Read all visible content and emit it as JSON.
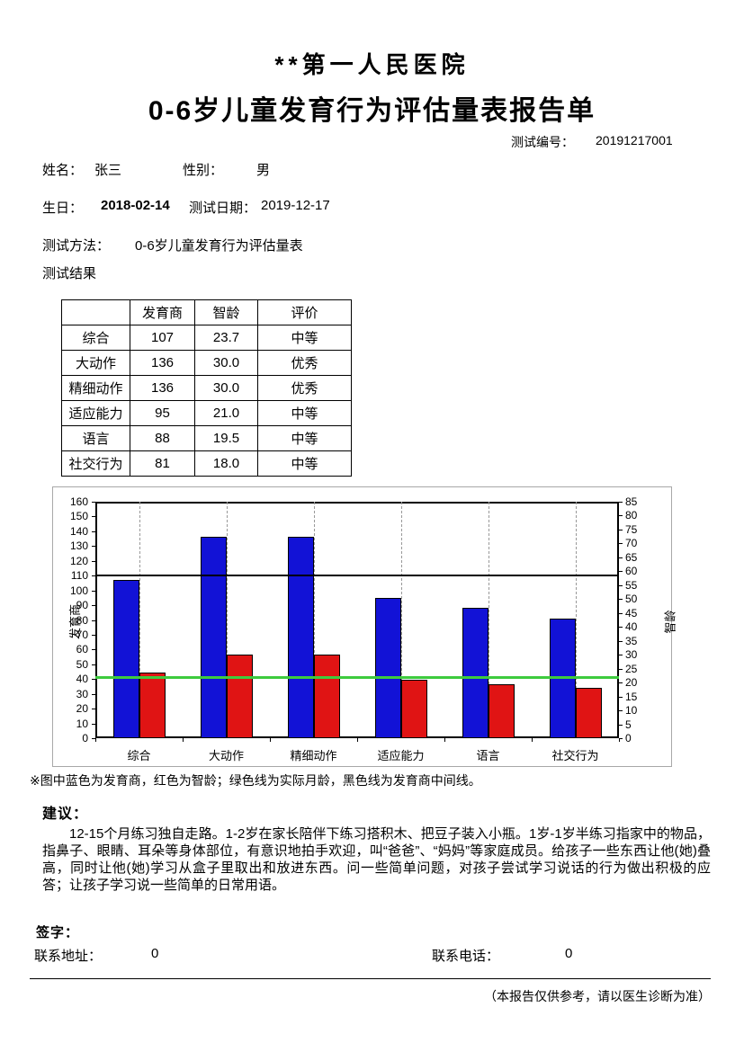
{
  "header": {
    "hospital": "**第一人民医院",
    "title": "0-6岁儿童发育行为评估量表报告单",
    "test_no_label": "测试编号：",
    "test_no": "20191217001"
  },
  "patient": {
    "name_label": "姓名：",
    "name": "张三",
    "gender_label": "性别：",
    "gender": "男",
    "birth_label": "生日：",
    "birth": "2018-02-14",
    "test_date_label": "测试日期：",
    "test_date": "2019-12-17",
    "method_label": "测试方法：",
    "method": "0-6岁儿童发育行为评估量表",
    "result_label": "测试结果"
  },
  "result_table": {
    "headers": [
      "",
      "发育商",
      "智龄",
      "评价"
    ],
    "rows": [
      [
        "综合",
        "107",
        "23.7",
        "中等"
      ],
      [
        "大动作",
        "136",
        "30.0",
        "优秀"
      ],
      [
        "精细动作",
        "136",
        "30.0",
        "优秀"
      ],
      [
        "适应能力",
        "95",
        "21.0",
        "中等"
      ],
      [
        "语言",
        "88",
        "19.5",
        "中等"
      ],
      [
        "社交行为",
        "81",
        "18.0",
        "中等"
      ]
    ]
  },
  "chart_data": {
    "type": "bar",
    "categories": [
      "综合",
      "大动作",
      "精细动作",
      "适应能力",
      "语言",
      "社交行为"
    ],
    "series": [
      {
        "name": "发育商",
        "axis": "left",
        "color": "#1212d6",
        "values": [
          107,
          136,
          136,
          95,
          88,
          81
        ]
      },
      {
        "name": "智龄",
        "axis": "right",
        "color": "#e01414",
        "values": [
          23.7,
          30.0,
          30.0,
          21.0,
          19.5,
          18.0
        ]
      }
    ],
    "left_axis": {
      "label": "发育商",
      "min": 0,
      "max": 160,
      "step": 10
    },
    "right_axis": {
      "label": "智龄",
      "min": 0,
      "max": 85,
      "step": 5
    },
    "reference_lines": [
      {
        "name": "发育商中间线",
        "axis": "left",
        "value": 110,
        "color": "#000000",
        "thickness": 2
      },
      {
        "name": "实际月龄",
        "axis": "right",
        "value": 22,
        "color": "#3ecb3e",
        "thickness": 3
      }
    ],
    "grid": "vertical-dashed",
    "legend_position": "none"
  },
  "legend_note": "※图中蓝色为发育商，红色为智龄；绿色线为实际月龄，黑色线为发育商中间线。",
  "suggestion": {
    "label": "建议：",
    "text": "12-15个月练习独自走路。1-2岁在家长陪伴下练习搭积木、把豆子装入小瓶。1岁-1岁半练习指家中的物品，指鼻子、眼睛、耳朵等身体部位，有意识地拍手欢迎，叫“爸爸”、“妈妈”等家庭成员。给孩子一些东西让他(她)叠高，同时让他(她)学习从盒子里取出和放进东西。问一些简单问题，对孩子尝试学习说话的行为做出积极的应答；让孩子学习说一些简单的日常用语。"
  },
  "footer": {
    "sign_label": "签字：",
    "address_label": "联系地址：",
    "address": "0",
    "phone_label": "联系电话：",
    "phone": "0",
    "note": "（本报告仅供参考，请以医生诊断为准）"
  }
}
